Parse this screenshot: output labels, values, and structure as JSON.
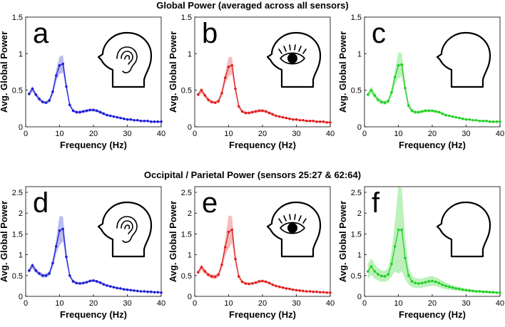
{
  "rows": [
    {
      "title": "Global Power (averaged across all sensors)"
    },
    {
      "title": "Occipital / Parietal Power (sensors 25:27 & 62:64)"
    }
  ],
  "colors": {
    "blue": "#1f1fd6",
    "red": "#e02020",
    "green": "#22d022"
  },
  "chart_data": [
    {
      "type": "line",
      "panel": "a",
      "icon": "ear-head-icon",
      "color": "#1f1fd6",
      "xlabel": "Frequency (Hz)",
      "ylabel": "Avg. Global Power",
      "xlim": [
        0,
        40
      ],
      "ylim": [
        0,
        1.5
      ],
      "xticks": [
        "0",
        "10",
        "20",
        "30",
        "40"
      ],
      "yticks": [
        "0",
        "0.5",
        "1",
        "1.5"
      ],
      "x": [
        1,
        2,
        3,
        4,
        5,
        6,
        7,
        8,
        9,
        10,
        11,
        12,
        13,
        14,
        15,
        16,
        17,
        18,
        19,
        20,
        21,
        22,
        23,
        24,
        25,
        26,
        27,
        28,
        29,
        30,
        31,
        32,
        33,
        34,
        35,
        36,
        37,
        38,
        39,
        40
      ],
      "values": [
        0.45,
        0.52,
        0.44,
        0.38,
        0.34,
        0.33,
        0.36,
        0.48,
        0.7,
        0.84,
        0.86,
        0.55,
        0.3,
        0.22,
        0.2,
        0.2,
        0.21,
        0.22,
        0.23,
        0.23,
        0.22,
        0.2,
        0.18,
        0.16,
        0.15,
        0.14,
        0.13,
        0.12,
        0.11,
        0.1,
        0.1,
        0.09,
        0.09,
        0.08,
        0.08,
        0.08,
        0.07,
        0.07,
        0.07,
        0.07
      ],
      "band": [
        0.03,
        0.04,
        0.03,
        0.03,
        0.02,
        0.02,
        0.03,
        0.05,
        0.08,
        0.12,
        0.12,
        0.06,
        0.03,
        0.02,
        0.02,
        0.02,
        0.02,
        0.02,
        0.02,
        0.02,
        0.02,
        0.02,
        0.02,
        0.01,
        0.01,
        0.01,
        0.01,
        0.01,
        0.01,
        0.01,
        0.01,
        0.01,
        0.01,
        0.01,
        0.01,
        0.01,
        0.01,
        0.01,
        0.01,
        0.01
      ]
    },
    {
      "type": "line",
      "panel": "b",
      "icon": "eye-head-icon",
      "color": "#e02020",
      "xlabel": "Frequency (Hz)",
      "ylabel": "Avg. Global Power",
      "xlim": [
        0,
        40
      ],
      "ylim": [
        0,
        1.5
      ],
      "xticks": [
        "0",
        "10",
        "20",
        "30",
        "40"
      ],
      "yticks": [
        "0",
        "0.5",
        "1",
        "1.5"
      ],
      "x": [
        1,
        2,
        3,
        4,
        5,
        6,
        7,
        8,
        9,
        10,
        11,
        12,
        13,
        14,
        15,
        16,
        17,
        18,
        19,
        20,
        21,
        22,
        23,
        24,
        25,
        26,
        27,
        28,
        29,
        30,
        31,
        32,
        33,
        34,
        35,
        36,
        37,
        38,
        39,
        40
      ],
      "values": [
        0.44,
        0.5,
        0.43,
        0.37,
        0.34,
        0.33,
        0.35,
        0.46,
        0.67,
        0.82,
        0.84,
        0.52,
        0.28,
        0.21,
        0.19,
        0.19,
        0.2,
        0.21,
        0.22,
        0.22,
        0.21,
        0.19,
        0.17,
        0.15,
        0.14,
        0.13,
        0.12,
        0.11,
        0.1,
        0.1,
        0.09,
        0.09,
        0.08,
        0.08,
        0.08,
        0.07,
        0.07,
        0.07,
        0.06,
        0.06
      ],
      "band": [
        0.03,
        0.04,
        0.03,
        0.03,
        0.02,
        0.02,
        0.03,
        0.05,
        0.08,
        0.13,
        0.12,
        0.06,
        0.03,
        0.02,
        0.02,
        0.02,
        0.02,
        0.02,
        0.02,
        0.02,
        0.02,
        0.02,
        0.02,
        0.01,
        0.01,
        0.01,
        0.01,
        0.01,
        0.01,
        0.01,
        0.01,
        0.01,
        0.01,
        0.01,
        0.01,
        0.01,
        0.01,
        0.01,
        0.01,
        0.01
      ]
    },
    {
      "type": "line",
      "panel": "c",
      "icon": "head-icon",
      "color": "#22d022",
      "xlabel": "Frequency (Hz)",
      "ylabel": "Avg. Global Power",
      "xlim": [
        0,
        40
      ],
      "ylim": [
        0,
        1.5
      ],
      "xticks": [
        "0",
        "10",
        "20",
        "30",
        "40"
      ],
      "yticks": [
        "0",
        "0.5",
        "1",
        "1.5"
      ],
      "x": [
        1,
        2,
        3,
        4,
        5,
        6,
        7,
        8,
        9,
        10,
        11,
        12,
        13,
        14,
        15,
        16,
        17,
        18,
        19,
        20,
        21,
        22,
        23,
        24,
        25,
        26,
        27,
        28,
        29,
        30,
        31,
        32,
        33,
        34,
        35,
        36,
        37,
        38,
        39,
        40
      ],
      "values": [
        0.44,
        0.5,
        0.43,
        0.37,
        0.34,
        0.33,
        0.35,
        0.47,
        0.68,
        0.84,
        0.85,
        0.53,
        0.29,
        0.22,
        0.2,
        0.2,
        0.21,
        0.22,
        0.22,
        0.22,
        0.21,
        0.2,
        0.18,
        0.16,
        0.15,
        0.14,
        0.13,
        0.12,
        0.11,
        0.1,
        0.1,
        0.09,
        0.09,
        0.08,
        0.08,
        0.08,
        0.07,
        0.07,
        0.07,
        0.07
      ],
      "band": [
        0.04,
        0.05,
        0.04,
        0.03,
        0.03,
        0.03,
        0.03,
        0.06,
        0.1,
        0.18,
        0.16,
        0.08,
        0.04,
        0.03,
        0.02,
        0.02,
        0.02,
        0.02,
        0.02,
        0.02,
        0.02,
        0.02,
        0.02,
        0.01,
        0.01,
        0.01,
        0.01,
        0.01,
        0.01,
        0.01,
        0.01,
        0.01,
        0.01,
        0.01,
        0.01,
        0.01,
        0.01,
        0.01,
        0.01,
        0.01
      ]
    },
    {
      "type": "line",
      "panel": "d",
      "icon": "ear-head-icon",
      "color": "#1f1fd6",
      "xlabel": "Frequency (Hz)",
      "ylabel": "Avg. Global Power",
      "xlim": [
        0,
        40
      ],
      "ylim": [
        0,
        2.5
      ],
      "xticks": [
        "0",
        "10",
        "20",
        "30",
        "40"
      ],
      "yticks": [
        "0",
        "0.5",
        "1",
        "1.5",
        "2",
        "2.5"
      ],
      "x": [
        1,
        2,
        3,
        4,
        5,
        6,
        7,
        8,
        9,
        10,
        11,
        12,
        13,
        14,
        15,
        16,
        17,
        18,
        19,
        20,
        21,
        22,
        23,
        24,
        25,
        26,
        27,
        28,
        29,
        30,
        31,
        32,
        33,
        34,
        35,
        36,
        37,
        38,
        39,
        40
      ],
      "values": [
        0.62,
        0.74,
        0.62,
        0.55,
        0.5,
        0.5,
        0.55,
        0.8,
        1.2,
        1.58,
        1.62,
        0.95,
        0.5,
        0.36,
        0.32,
        0.31,
        0.32,
        0.34,
        0.37,
        0.38,
        0.36,
        0.33,
        0.29,
        0.26,
        0.24,
        0.22,
        0.2,
        0.19,
        0.17,
        0.16,
        0.15,
        0.14,
        0.13,
        0.12,
        0.12,
        0.11,
        0.11,
        0.1,
        0.1,
        0.09
      ],
      "band": [
        0.06,
        0.07,
        0.06,
        0.05,
        0.05,
        0.05,
        0.06,
        0.1,
        0.18,
        0.35,
        0.3,
        0.12,
        0.05,
        0.04,
        0.03,
        0.03,
        0.03,
        0.03,
        0.03,
        0.03,
        0.03,
        0.03,
        0.03,
        0.02,
        0.02,
        0.02,
        0.02,
        0.02,
        0.02,
        0.02,
        0.02,
        0.01,
        0.01,
        0.01,
        0.01,
        0.01,
        0.01,
        0.01,
        0.01,
        0.01
      ]
    },
    {
      "type": "line",
      "panel": "e",
      "icon": "eye-head-icon",
      "color": "#e02020",
      "xlabel": "Frequency (Hz)",
      "ylabel": "Avg. Global Power",
      "xlim": [
        0,
        40
      ],
      "ylim": [
        0,
        2.5
      ],
      "xticks": [
        "0",
        "10",
        "20",
        "30",
        "40"
      ],
      "yticks": [
        "0",
        "0.5",
        "1",
        "1.5",
        "2",
        "2.5"
      ],
      "x": [
        1,
        2,
        3,
        4,
        5,
        6,
        7,
        8,
        9,
        10,
        11,
        12,
        13,
        14,
        15,
        16,
        17,
        18,
        19,
        20,
        21,
        22,
        23,
        24,
        25,
        26,
        27,
        28,
        29,
        30,
        31,
        32,
        33,
        34,
        35,
        36,
        37,
        38,
        39,
        40
      ],
      "values": [
        0.58,
        0.7,
        0.6,
        0.52,
        0.48,
        0.47,
        0.52,
        0.76,
        1.18,
        1.55,
        1.6,
        0.9,
        0.48,
        0.35,
        0.31,
        0.3,
        0.31,
        0.33,
        0.36,
        0.37,
        0.35,
        0.32,
        0.28,
        0.25,
        0.23,
        0.21,
        0.19,
        0.18,
        0.16,
        0.15,
        0.14,
        0.13,
        0.12,
        0.12,
        0.11,
        0.11,
        0.1,
        0.1,
        0.09,
        0.09
      ],
      "band": [
        0.06,
        0.07,
        0.06,
        0.05,
        0.05,
        0.05,
        0.06,
        0.1,
        0.2,
        0.4,
        0.32,
        0.12,
        0.05,
        0.04,
        0.03,
        0.03,
        0.03,
        0.03,
        0.03,
        0.03,
        0.03,
        0.03,
        0.03,
        0.02,
        0.02,
        0.02,
        0.02,
        0.02,
        0.02,
        0.02,
        0.02,
        0.01,
        0.01,
        0.01,
        0.01,
        0.01,
        0.01,
        0.01,
        0.01,
        0.01
      ]
    },
    {
      "type": "line",
      "panel": "f",
      "icon": "head-icon",
      "color": "#22d022",
      "xlabel": "Frequency (Hz)",
      "ylabel": "Avg. Global Power",
      "xlim": [
        0,
        40
      ],
      "ylim": [
        0,
        2.5
      ],
      "xticks": [
        "0",
        "10",
        "20",
        "30",
        "40"
      ],
      "yticks": [
        "0",
        "0.5",
        "1",
        "1.5",
        "2",
        "2.5"
      ],
      "x": [
        1,
        2,
        3,
        4,
        5,
        6,
        7,
        8,
        9,
        10,
        11,
        12,
        13,
        14,
        15,
        16,
        17,
        18,
        19,
        20,
        21,
        22,
        23,
        24,
        25,
        26,
        27,
        28,
        29,
        30,
        31,
        32,
        33,
        34,
        35,
        36,
        37,
        38,
        39,
        40
      ],
      "values": [
        0.6,
        0.72,
        0.6,
        0.53,
        0.49,
        0.48,
        0.53,
        0.78,
        1.2,
        1.6,
        1.6,
        0.92,
        0.5,
        0.36,
        0.32,
        0.31,
        0.32,
        0.34,
        0.36,
        0.37,
        0.35,
        0.32,
        0.28,
        0.25,
        0.23,
        0.21,
        0.19,
        0.18,
        0.16,
        0.15,
        0.14,
        0.13,
        0.12,
        0.12,
        0.11,
        0.11,
        0.1,
        0.1,
        0.09,
        0.09
      ],
      "band": [
        0.18,
        0.2,
        0.18,
        0.15,
        0.14,
        0.13,
        0.15,
        0.3,
        0.6,
        1.05,
        1.0,
        0.5,
        0.22,
        0.14,
        0.12,
        0.11,
        0.11,
        0.11,
        0.12,
        0.12,
        0.11,
        0.1,
        0.09,
        0.08,
        0.07,
        0.06,
        0.05,
        0.05,
        0.04,
        0.04,
        0.04,
        0.03,
        0.03,
        0.03,
        0.03,
        0.03,
        0.03,
        0.03,
        0.02,
        0.02
      ]
    }
  ]
}
